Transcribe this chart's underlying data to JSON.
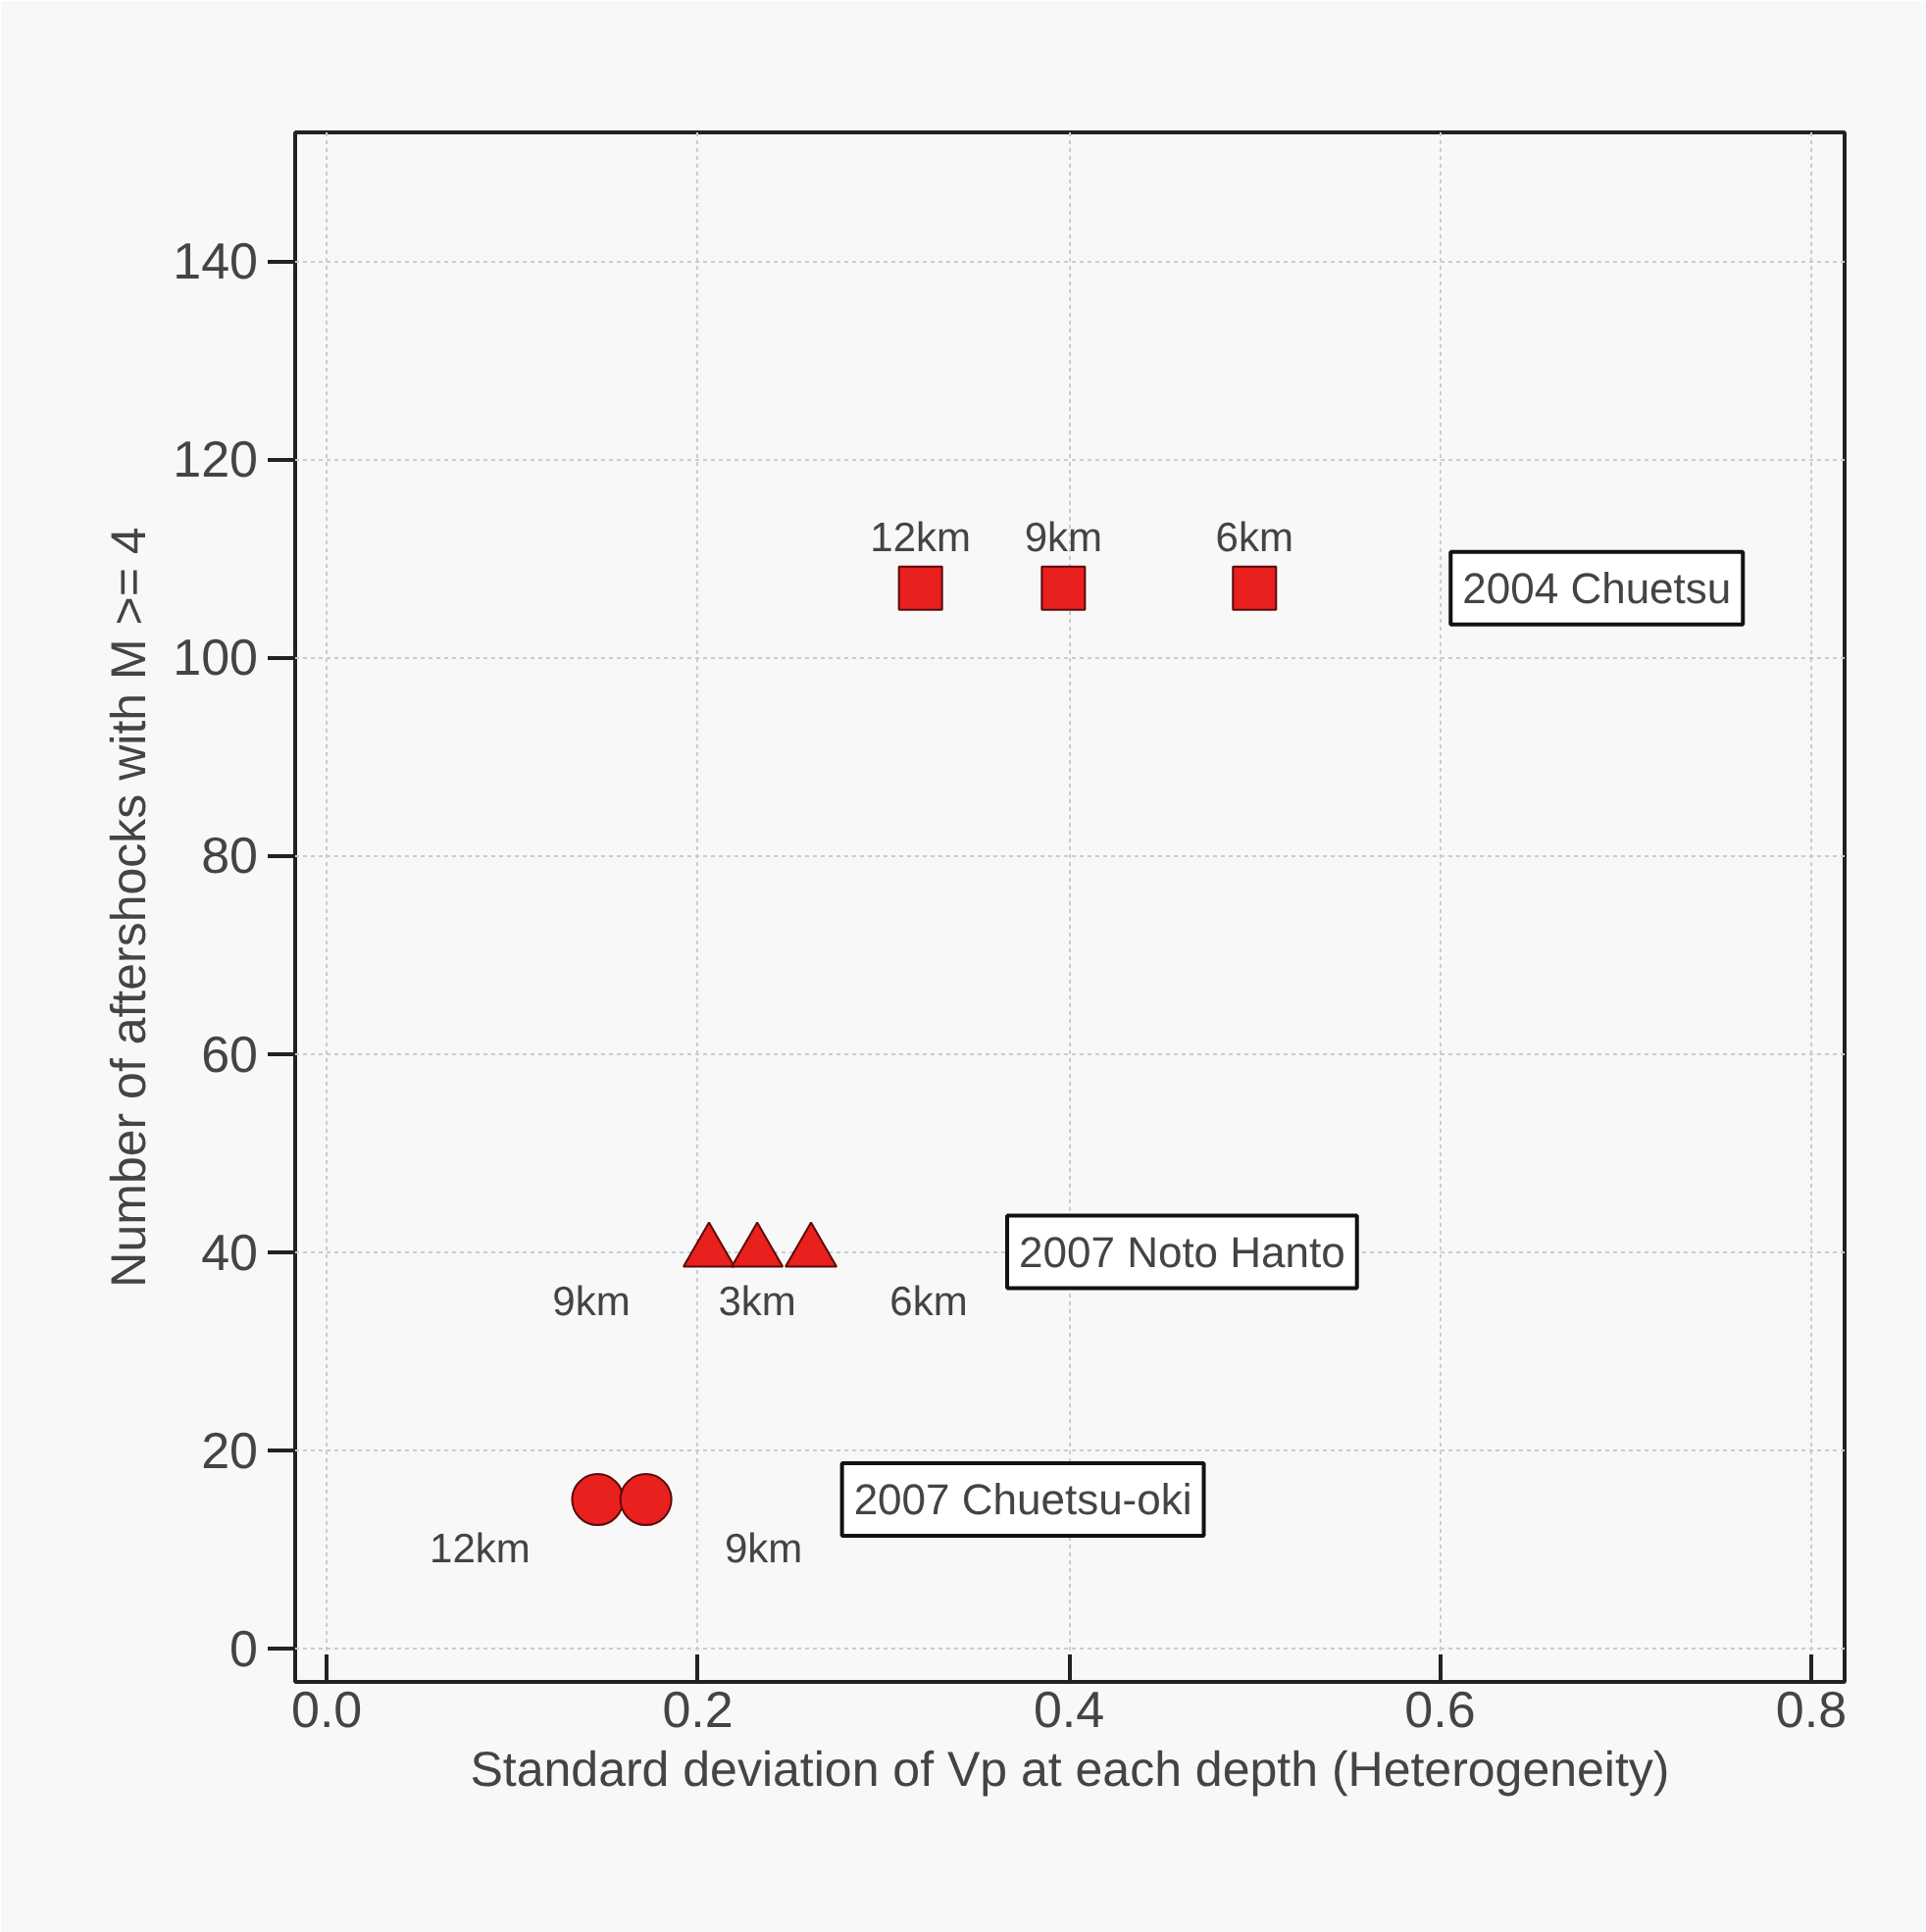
{
  "chart_data": {
    "type": "scatter",
    "xlabel": "Standard deviation of Vp at each depth (Heterogeneity)",
    "ylabel": "Number of aftershocks with M >= 4",
    "xlim": [
      -0.017,
      0.818
    ],
    "ylim": [
      -3.4,
      153
    ],
    "xticks": [
      {
        "value": 0,
        "label": "0.0"
      },
      0.2,
      0.4,
      0.6,
      0.8
    ],
    "yticks": [
      0,
      20,
      40,
      60,
      80,
      100,
      120,
      140
    ],
    "grid": true,
    "annotations": [
      {
        "text": "12km",
        "x": 0.32,
        "y": 107
      },
      {
        "text": "9km",
        "x": 0.397,
        "y": 107
      },
      {
        "text": "6km",
        "x": 0.5,
        "y": 107
      },
      {
        "text": "9km",
        "x": 0.206,
        "y": 40
      },
      {
        "text": "3km",
        "x": 0.232,
        "y": 40
      },
      {
        "text": "6km",
        "x": 0.261,
        "y": 40
      },
      {
        "text": "12km",
        "x": 0.146,
        "y": 15
      },
      {
        "text": "9km",
        "x": 0.172,
        "y": 15
      }
    ],
    "series": [
      {
        "name": "2004 Chuetsu",
        "color": "#e8201e",
        "marker": "square",
        "x": [
          0.32,
          0.397,
          0.5
        ],
        "values": [
          107,
          107,
          107
        ]
      },
      {
        "name": "2007 Noto Hanto",
        "color": "#e8201e",
        "marker": "triangle",
        "x": [
          0.206,
          0.232,
          0.261
        ],
        "values": [
          40,
          40,
          40
        ]
      },
      {
        "name": "2007 Chuetsu-oki",
        "color": "#e8201e",
        "marker": "circle",
        "x": [
          0.146,
          0.172
        ],
        "values": [
          15,
          15
        ]
      }
    ]
  }
}
